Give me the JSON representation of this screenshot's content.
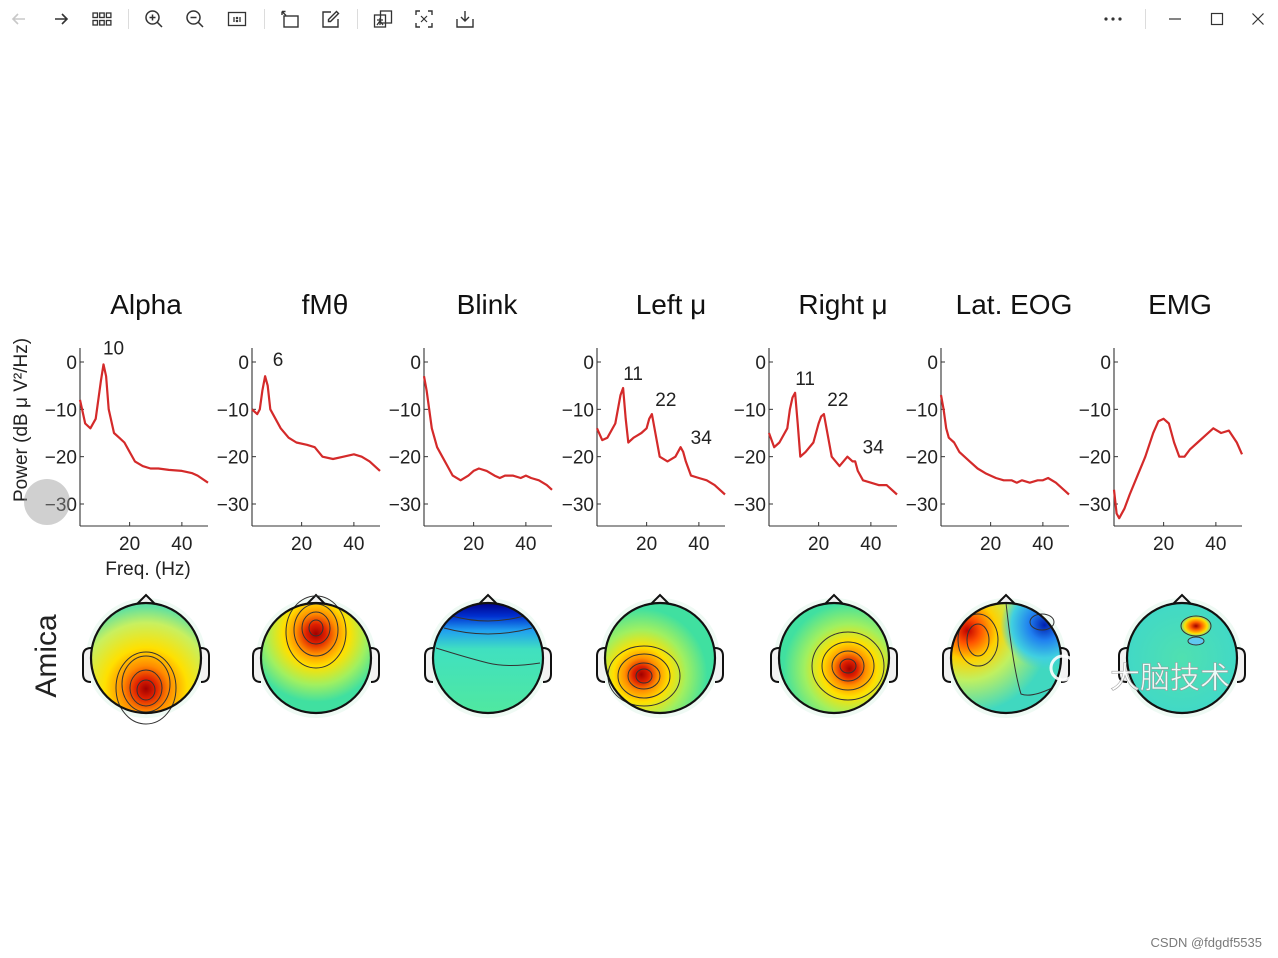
{
  "toolbar": {
    "buttons": [
      {
        "name": "back-button",
        "icon": "arrow-left-icon"
      },
      {
        "name": "forward-button",
        "icon": "arrow-right-icon"
      },
      {
        "name": "grid-view-button",
        "icon": "grid-icon"
      },
      {
        "name": "zoom-in-button",
        "icon": "zoom-in-icon"
      },
      {
        "name": "zoom-out-button",
        "icon": "zoom-out-icon"
      },
      {
        "name": "actual-size-button",
        "icon": "actual-size-icon"
      },
      {
        "name": "rotate-button",
        "icon": "rotate-icon"
      },
      {
        "name": "edit-button",
        "icon": "edit-icon"
      },
      {
        "name": "translate-button",
        "icon": "translate-icon"
      },
      {
        "name": "extract-text-button",
        "icon": "scan-text-icon"
      },
      {
        "name": "save-button",
        "icon": "download-icon"
      },
      {
        "name": "more-button",
        "icon": "more-icon"
      },
      {
        "name": "minimize-button",
        "icon": "minimize-icon"
      },
      {
        "name": "maximize-button",
        "icon": "maximize-icon"
      },
      {
        "name": "close-button",
        "icon": "close-icon"
      }
    ]
  },
  "chart_data": {
    "type": "line",
    "y_axis_label": "Power (dB  μ V²/Hz)",
    "x_axis_label": "Freq. (Hz)",
    "row_label": "Amica",
    "ylim": [
      -33,
      2
    ],
    "xlim": [
      1,
      50
    ],
    "yticks": [
      "0",
      "−10",
      "−20",
      "−30"
    ],
    "xticks": [
      "20",
      "40"
    ],
    "line_color": "#d42a2a",
    "panels": [
      {
        "title": "Alpha",
        "peaks": [
          "10"
        ],
        "x": [
          1,
          3,
          5,
          7,
          9,
          10,
          11,
          12,
          14,
          16,
          18,
          20,
          22,
          25,
          28,
          31,
          35,
          40,
          44,
          46,
          50
        ],
        "y": [
          -8,
          -13,
          -14,
          -12,
          -4,
          -0.5,
          -3,
          -10,
          -15,
          -16,
          -17,
          -19,
          -21,
          -22,
          -22.5,
          -22.5,
          -22.8,
          -23,
          -23.5,
          -24,
          -25.5
        ]
      },
      {
        "title": "fMθ",
        "peaks": [
          "6"
        ],
        "x": [
          1,
          3,
          4,
          5,
          6,
          7,
          8,
          10,
          12,
          15,
          18,
          22,
          25,
          28,
          32,
          36,
          40,
          43,
          46,
          50
        ],
        "y": [
          -10,
          -11,
          -10,
          -6,
          -3,
          -5,
          -10,
          -12,
          -14,
          -16,
          -17,
          -17.5,
          -18,
          -20,
          -20.5,
          -20,
          -19.5,
          -20,
          -21,
          -23
        ]
      },
      {
        "title": "Blink",
        "peaks": [],
        "x": [
          1,
          2,
          3,
          4,
          6,
          8,
          10,
          12,
          15,
          18,
          20,
          22,
          25,
          28,
          30,
          32,
          35,
          38,
          40,
          42,
          45,
          48,
          50
        ],
        "y": [
          -3,
          -6,
          -10,
          -14,
          -18,
          -20,
          -22,
          -24,
          -25,
          -24,
          -23,
          -22.5,
          -23,
          -24,
          -24.5,
          -24,
          -24,
          -24.5,
          -24,
          -24.5,
          -25,
          -26,
          -27
        ]
      },
      {
        "title": "Left μ",
        "peaks": [
          "11",
          "22",
          "34"
        ],
        "x": [
          1,
          3,
          5,
          8,
          9,
          10,
          11,
          12,
          13,
          15,
          18,
          20,
          21,
          22,
          23,
          25,
          28,
          31,
          33,
          34,
          35,
          37,
          40,
          43,
          46,
          50
        ],
        "y": [
          -14,
          -16.5,
          -16,
          -13,
          -10,
          -7,
          -5.5,
          -12,
          -17,
          -16,
          -15,
          -14,
          -12,
          -11,
          -14,
          -20,
          -21,
          -20,
          -18,
          -19,
          -21,
          -24,
          -24.5,
          -25,
          -26,
          -28
        ]
      },
      {
        "title": "Right μ",
        "peaks": [
          "11",
          "22",
          "34"
        ],
        "x": [
          1,
          3,
          5,
          8,
          9,
          10,
          11,
          12,
          13,
          15,
          18,
          20,
          21,
          22,
          23,
          25,
          28,
          31,
          33,
          34,
          35,
          37,
          40,
          43,
          46,
          50
        ],
        "y": [
          -15,
          -18,
          -17,
          -14,
          -10,
          -7.5,
          -6.5,
          -13,
          -20,
          -19,
          -17,
          -13,
          -11.5,
          -11,
          -14,
          -20,
          -22,
          -20,
          -21,
          -21,
          -23,
          -25,
          -25.5,
          -26,
          -26,
          -28
        ]
      },
      {
        "title": "Lat. EOG",
        "peaks": [],
        "x": [
          1,
          2,
          3,
          4,
          6,
          8,
          10,
          12,
          15,
          18,
          20,
          22,
          25,
          28,
          30,
          32,
          35,
          38,
          40,
          42,
          45,
          48,
          50
        ],
        "y": [
          -7,
          -10,
          -14,
          -16,
          -17,
          -19,
          -20,
          -21,
          -22.5,
          -23.5,
          -24,
          -24.5,
          -25,
          -25,
          -25.5,
          -25,
          -25.5,
          -25,
          -25,
          -24.5,
          -25.5,
          -27,
          -28
        ]
      },
      {
        "title": "EMG",
        "peaks": [],
        "x": [
          1,
          2,
          3,
          5,
          7,
          10,
          13,
          16,
          18,
          20,
          22,
          24,
          26,
          28,
          30,
          33,
          36,
          39,
          42,
          45,
          48,
          50
        ],
        "y": [
          -27,
          -32,
          -33,
          -31,
          -28,
          -24,
          -20,
          -15,
          -12.5,
          -12,
          -13,
          -17,
          -20,
          -20,
          -18.5,
          -17,
          -15.5,
          -14,
          -15,
          -14.5,
          -17,
          -19.5
        ]
      }
    ],
    "scalp_maps": [
      {
        "name": "Alpha",
        "pattern": "occipital-positive"
      },
      {
        "name": "fMθ",
        "pattern": "frontal-midline-positive"
      },
      {
        "name": "Blink",
        "pattern": "frontal-negative"
      },
      {
        "name": "Left μ",
        "pattern": "left-central-positive"
      },
      {
        "name": "Right μ",
        "pattern": "right-central-positive"
      },
      {
        "name": "Lat. EOG",
        "pattern": "lateral-frontal-dipole"
      },
      {
        "name": "EMG",
        "pattern": "focal-frontal"
      }
    ]
  },
  "overlay": {
    "wechat_watermark": "大脑技术",
    "csdn_watermark": "CSDN @fdgdf5535"
  }
}
